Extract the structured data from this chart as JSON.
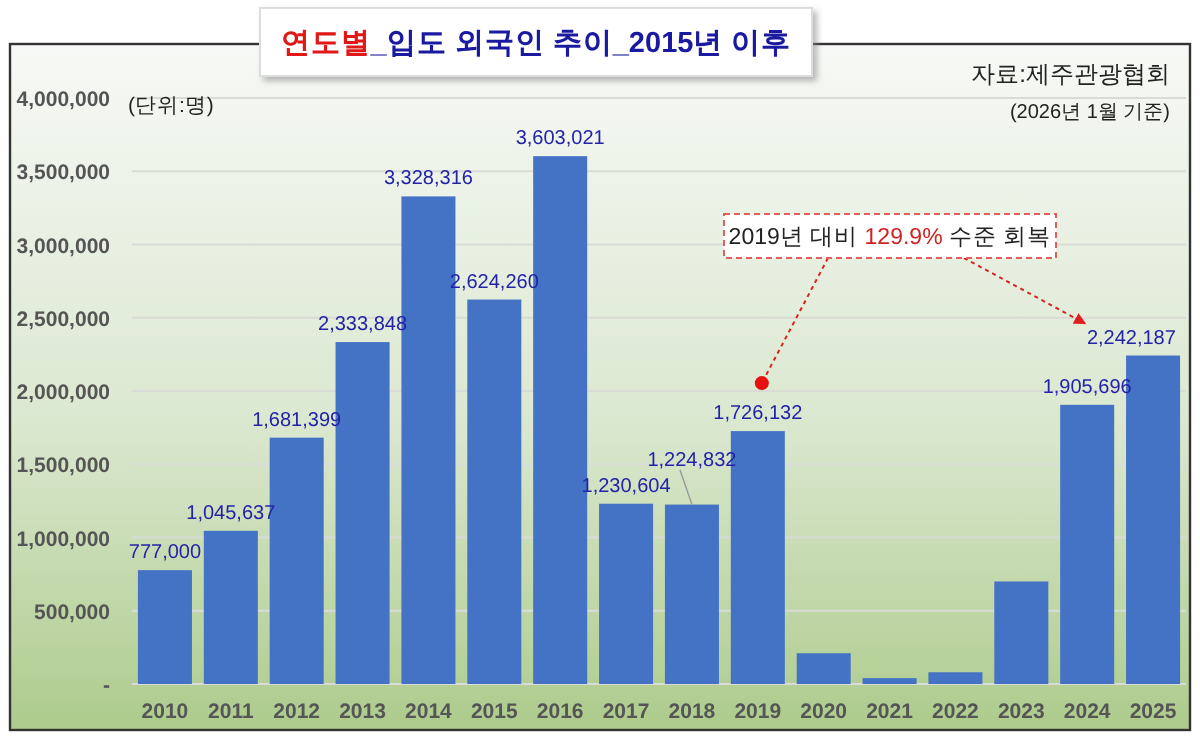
{
  "chart_data": {
    "type": "bar",
    "title": "연도별_입도 외국인 추이_2015년 이후",
    "categories": [
      "2010",
      "2011",
      "2012",
      "2013",
      "2014",
      "2015",
      "2016",
      "2017",
      "2018",
      "2019",
      "2020",
      "2021",
      "2022",
      "2023",
      "2024",
      "2025"
    ],
    "series": [
      {
        "color": "#4472c4",
        "values": [
          777000,
          1045637,
          1681399,
          2333848,
          3328316,
          2624260,
          3603021,
          1230604,
          1224832,
          1726132,
          210000,
          40000,
          80000,
          700000,
          1905696,
          2242187
        ],
        "value_labels": [
          "777,000",
          "1,045,637",
          "1,681,399",
          "2,333,848",
          "3,328,316",
          "2,624,260",
          "3,603,021",
          "1,230,604",
          "1,224,832",
          "1,726,132",
          null,
          null,
          null,
          null,
          "1,905,696",
          "2,242,187"
        ]
      }
    ],
    "ylim": [
      0,
      4000000
    ],
    "yticks": [
      {
        "value": 0,
        "label": "-"
      },
      {
        "value": 500000,
        "label": "500,000"
      },
      {
        "value": 1000000,
        "label": "1,000,000"
      },
      {
        "value": 1500000,
        "label": "1,500,000"
      },
      {
        "value": 2000000,
        "label": "2,000,000"
      },
      {
        "value": 2500000,
        "label": "2,500,000"
      },
      {
        "value": 3000000,
        "label": "3,000,000"
      },
      {
        "value": 3500000,
        "label": "3,500,000"
      },
      {
        "value": 4000000,
        "label": "4,000,000"
      }
    ],
    "grid": "y",
    "annotations": [
      "자료:제주관광협회",
      "(단위:명)",
      "(2026년 1월 기준)",
      "2019년 대비 129.9% 수준 회복"
    ]
  }
}
